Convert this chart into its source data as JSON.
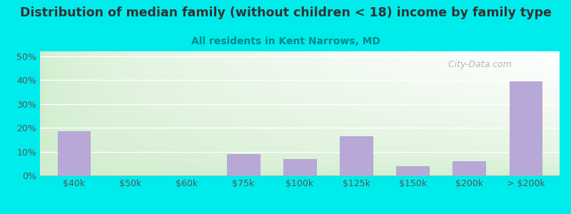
{
  "title": "Distribution of median family (without children < 18) income by family type",
  "subtitle": "All residents in Kent Narrows, MD",
  "categories": [
    "$40k",
    "$50k",
    "$60k",
    "$75k",
    "$100k",
    "$125k",
    "$150k",
    "$200k",
    "> $200k"
  ],
  "values": [
    18.5,
    0,
    0,
    9.0,
    7.0,
    16.5,
    4.0,
    6.0,
    39.5
  ],
  "bar_color": "#b8a8d8",
  "bar_edge_color": "#a898c8",
  "bg_outer": "#00ecec",
  "plot_bg_top": "#ffffff",
  "plot_bg_bottom_left": "#d0edcc",
  "title_color": "#333333",
  "subtitle_color": "#008888",
  "yticks": [
    0,
    10,
    20,
    30,
    40,
    50
  ],
  "ylim": [
    0,
    52
  ],
  "title_fontsize": 12.5,
  "subtitle_fontsize": 10,
  "tick_fontsize": 9,
  "watermark": " City-Data.com"
}
